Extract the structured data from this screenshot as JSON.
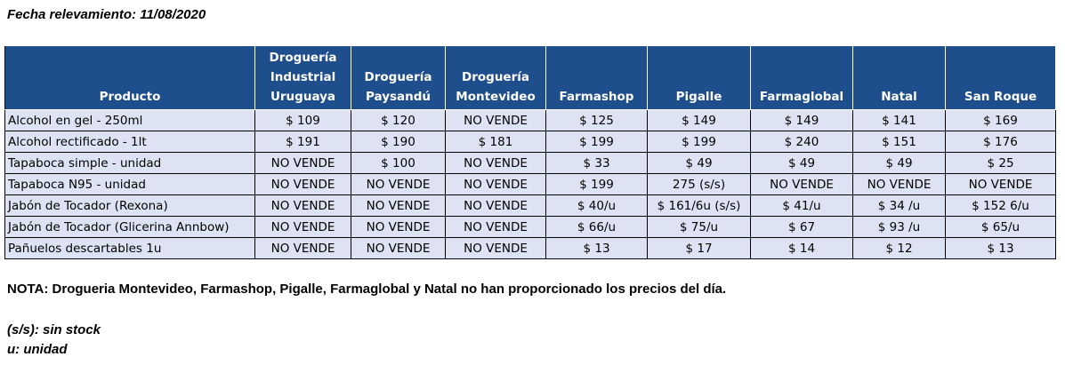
{
  "header": {
    "date_line": "Fecha relevamiento: 11/08/2020"
  },
  "table": {
    "columns": [
      "Producto",
      "Droguería Industrial Uruguaya",
      "Droguería Paysandú",
      "Droguería Montevideo",
      "Farmashop",
      "Pigalle",
      "Farmaglobal",
      "Natal",
      "San Roque"
    ],
    "rows": [
      [
        "Alcohol en gel  - 250ml",
        "$ 109",
        "$ 120",
        "NO VENDE",
        "$ 125",
        "$ 149",
        "$ 149",
        "$ 141",
        "$ 169"
      ],
      [
        "Alcohol rectificado - 1lt",
        "$ 191",
        "$ 190",
        "$ 181",
        "$ 199",
        "$ 199",
        "$ 240",
        "$ 151",
        "$ 176"
      ],
      [
        "Tapaboca simple - unidad",
        "NO VENDE",
        "$ 100",
        "NO VENDE",
        "$ 33",
        "$ 49",
        "$ 49",
        "$ 49",
        "$ 25"
      ],
      [
        "Tapaboca N95 - unidad",
        "NO VENDE",
        "NO VENDE",
        "NO VENDE",
        "$ 199",
        "275 (s/s)",
        "NO VENDE",
        "NO VENDE",
        "NO VENDE"
      ],
      [
        "Jabón de Tocador (Rexona)",
        "NO VENDE",
        "NO VENDE",
        "NO VENDE",
        "$ 40/u",
        "$ 161/6u (s/s)",
        "$ 41/u",
        "$ 34 /u",
        "$ 152 6/u"
      ],
      [
        "Jabón de Tocador (Glicerina Annbow)",
        "NO VENDE",
        "NO VENDE",
        "NO VENDE",
        "$ 66/u",
        "$ 75/u",
        "$ 67",
        "$ 93 /u",
        "$ 65/u"
      ],
      [
        "Pañuelos descartables 1u",
        "NO VENDE",
        "NO VENDE",
        "NO VENDE",
        "$ 13",
        "$ 17",
        "$ 14",
        "$ 12",
        "$ 13"
      ]
    ]
  },
  "note": "NOTA: Drogueria Montevideo, Farmashop, Pigalle, Farmaglobal y Natal no han proporcionado los precios del día.",
  "legend": {
    "ss": "(s/s): sin stock",
    "u": "u: unidad"
  },
  "colors": {
    "header_bg": "#1f4e8c",
    "row_bg": "#dde3f2"
  }
}
